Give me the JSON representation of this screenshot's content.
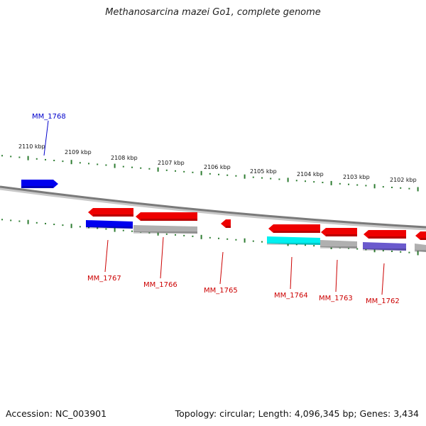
{
  "title": "Methanosarcina mazei Go1, complete genome",
  "footer": {
    "accession": "Accession: NC_003901",
    "summary": "Topology: circular; Length: 4,096,345 bp; Genes: 3,434"
  },
  "colors": {
    "tick": "#2e7d32",
    "backbone": "#808080",
    "label_forward": "#0000cc",
    "label_reverse": "#cc0000",
    "gene_red": "#ee0000",
    "gene_blue": "#0000ee",
    "gene_gray": "#b0b0b0",
    "gene_cyan": "#00f0f0",
    "gene_purple": "#6a5acd"
  },
  "ruler": {
    "unit": "kbp",
    "labels": [
      "2110 kbp",
      "2109 kbp",
      "2108 kbp",
      "2107 kbp",
      "2106 kbp",
      "2105 kbp",
      "2104 kbp",
      "2103 kbp",
      "2102 kbp"
    ]
  },
  "genes": [
    {
      "name": "MM_1768",
      "strand": "forward"
    },
    {
      "name": "MM_1767",
      "strand": "reverse"
    },
    {
      "name": "MM_1766",
      "strand": "reverse"
    },
    {
      "name": "MM_1765",
      "strand": "reverse"
    },
    {
      "name": "MM_1764",
      "strand": "reverse"
    },
    {
      "name": "MM_1763",
      "strand": "reverse"
    },
    {
      "name": "MM_1762",
      "strand": "reverse"
    }
  ]
}
